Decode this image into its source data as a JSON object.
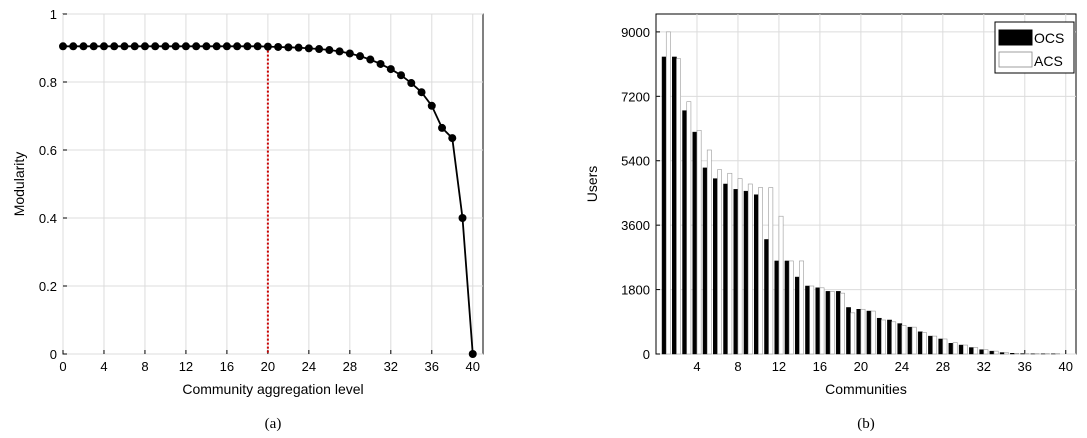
{
  "chart_data": [
    {
      "type": "line",
      "caption": "(a)",
      "xlabel": "Community aggregation level",
      "ylabel": "Modularity",
      "xlim": [
        0,
        41
      ],
      "ylim": [
        0,
        1
      ],
      "x_ticks": [
        "0",
        "4",
        "8",
        "12",
        "16",
        "20",
        "24",
        "28",
        "32",
        "36",
        "40"
      ],
      "y_ticks": [
        "0",
        "0.2",
        "0.4",
        "0.6",
        "0.8",
        "1"
      ],
      "grid": true,
      "marker_line_x": 20,
      "marker_line_color": "#cc0000",
      "line_color": "#000000",
      "series": [
        {
          "x": [
            0,
            1,
            2,
            3,
            4,
            5,
            6,
            7,
            8,
            9,
            10,
            11,
            12,
            13,
            14,
            15,
            16,
            17,
            18,
            19,
            20,
            21,
            22,
            23,
            24,
            25,
            26,
            27,
            28,
            29,
            30,
            31,
            32,
            33,
            34,
            35,
            36,
            37,
            38,
            39,
            40
          ],
          "values": [
            0.905,
            0.905,
            0.905,
            0.905,
            0.905,
            0.905,
            0.905,
            0.905,
            0.905,
            0.905,
            0.905,
            0.905,
            0.905,
            0.905,
            0.905,
            0.905,
            0.905,
            0.905,
            0.905,
            0.905,
            0.904,
            0.903,
            0.902,
            0.901,
            0.899,
            0.897,
            0.894,
            0.89,
            0.884,
            0.876,
            0.866,
            0.853,
            0.838,
            0.82,
            0.797,
            0.77,
            0.73,
            0.665,
            0.635,
            0.4,
            0.0
          ]
        }
      ]
    },
    {
      "type": "bar",
      "caption": "(b)",
      "xlabel": "Communities",
      "ylabel": "Users",
      "xlim": [
        0,
        41
      ],
      "ylim": [
        0,
        9500
      ],
      "x_ticks": [
        "4",
        "8",
        "12",
        "16",
        "20",
        "24",
        "28",
        "32",
        "36",
        "40"
      ],
      "y_ticks": [
        "0",
        "1800",
        "3600",
        "5400",
        "7200",
        "9000"
      ],
      "grid": true,
      "legend": {
        "placement": "top-right",
        "entries": [
          "OCS",
          "ACS"
        ]
      },
      "colors": {
        "OCS": "#000000",
        "ACS": "#ffffff"
      },
      "categories": [
        1,
        2,
        3,
        4,
        5,
        6,
        7,
        8,
        9,
        10,
        11,
        12,
        13,
        14,
        15,
        16,
        17,
        18,
        19,
        20,
        21,
        22,
        23,
        24,
        25,
        26,
        27,
        28,
        29,
        30,
        31,
        32,
        33,
        34,
        35,
        36,
        37,
        38,
        39
      ],
      "series": [
        {
          "name": "OCS",
          "values": [
            8300,
            8300,
            6800,
            6200,
            5200,
            4900,
            4750,
            4600,
            4550,
            4450,
            3200,
            2600,
            2600,
            2150,
            1900,
            1850,
            1750,
            1750,
            1300,
            1250,
            1200,
            1000,
            950,
            850,
            750,
            620,
            500,
            420,
            300,
            250,
            180,
            120,
            80,
            40,
            20,
            10,
            5,
            5,
            5
          ]
        },
        {
          "name": "ACS",
          "values": [
            9000,
            8250,
            7050,
            6250,
            5700,
            5150,
            5050,
            4900,
            4750,
            4650,
            4650,
            3850,
            2600,
            2600,
            1900,
            1850,
            1750,
            1700,
            1150,
            1250,
            1200,
            950,
            900,
            800,
            750,
            600,
            500,
            420,
            320,
            250,
            180,
            120,
            80,
            40,
            20,
            10,
            10,
            10,
            10
          ]
        }
      ]
    }
  ]
}
